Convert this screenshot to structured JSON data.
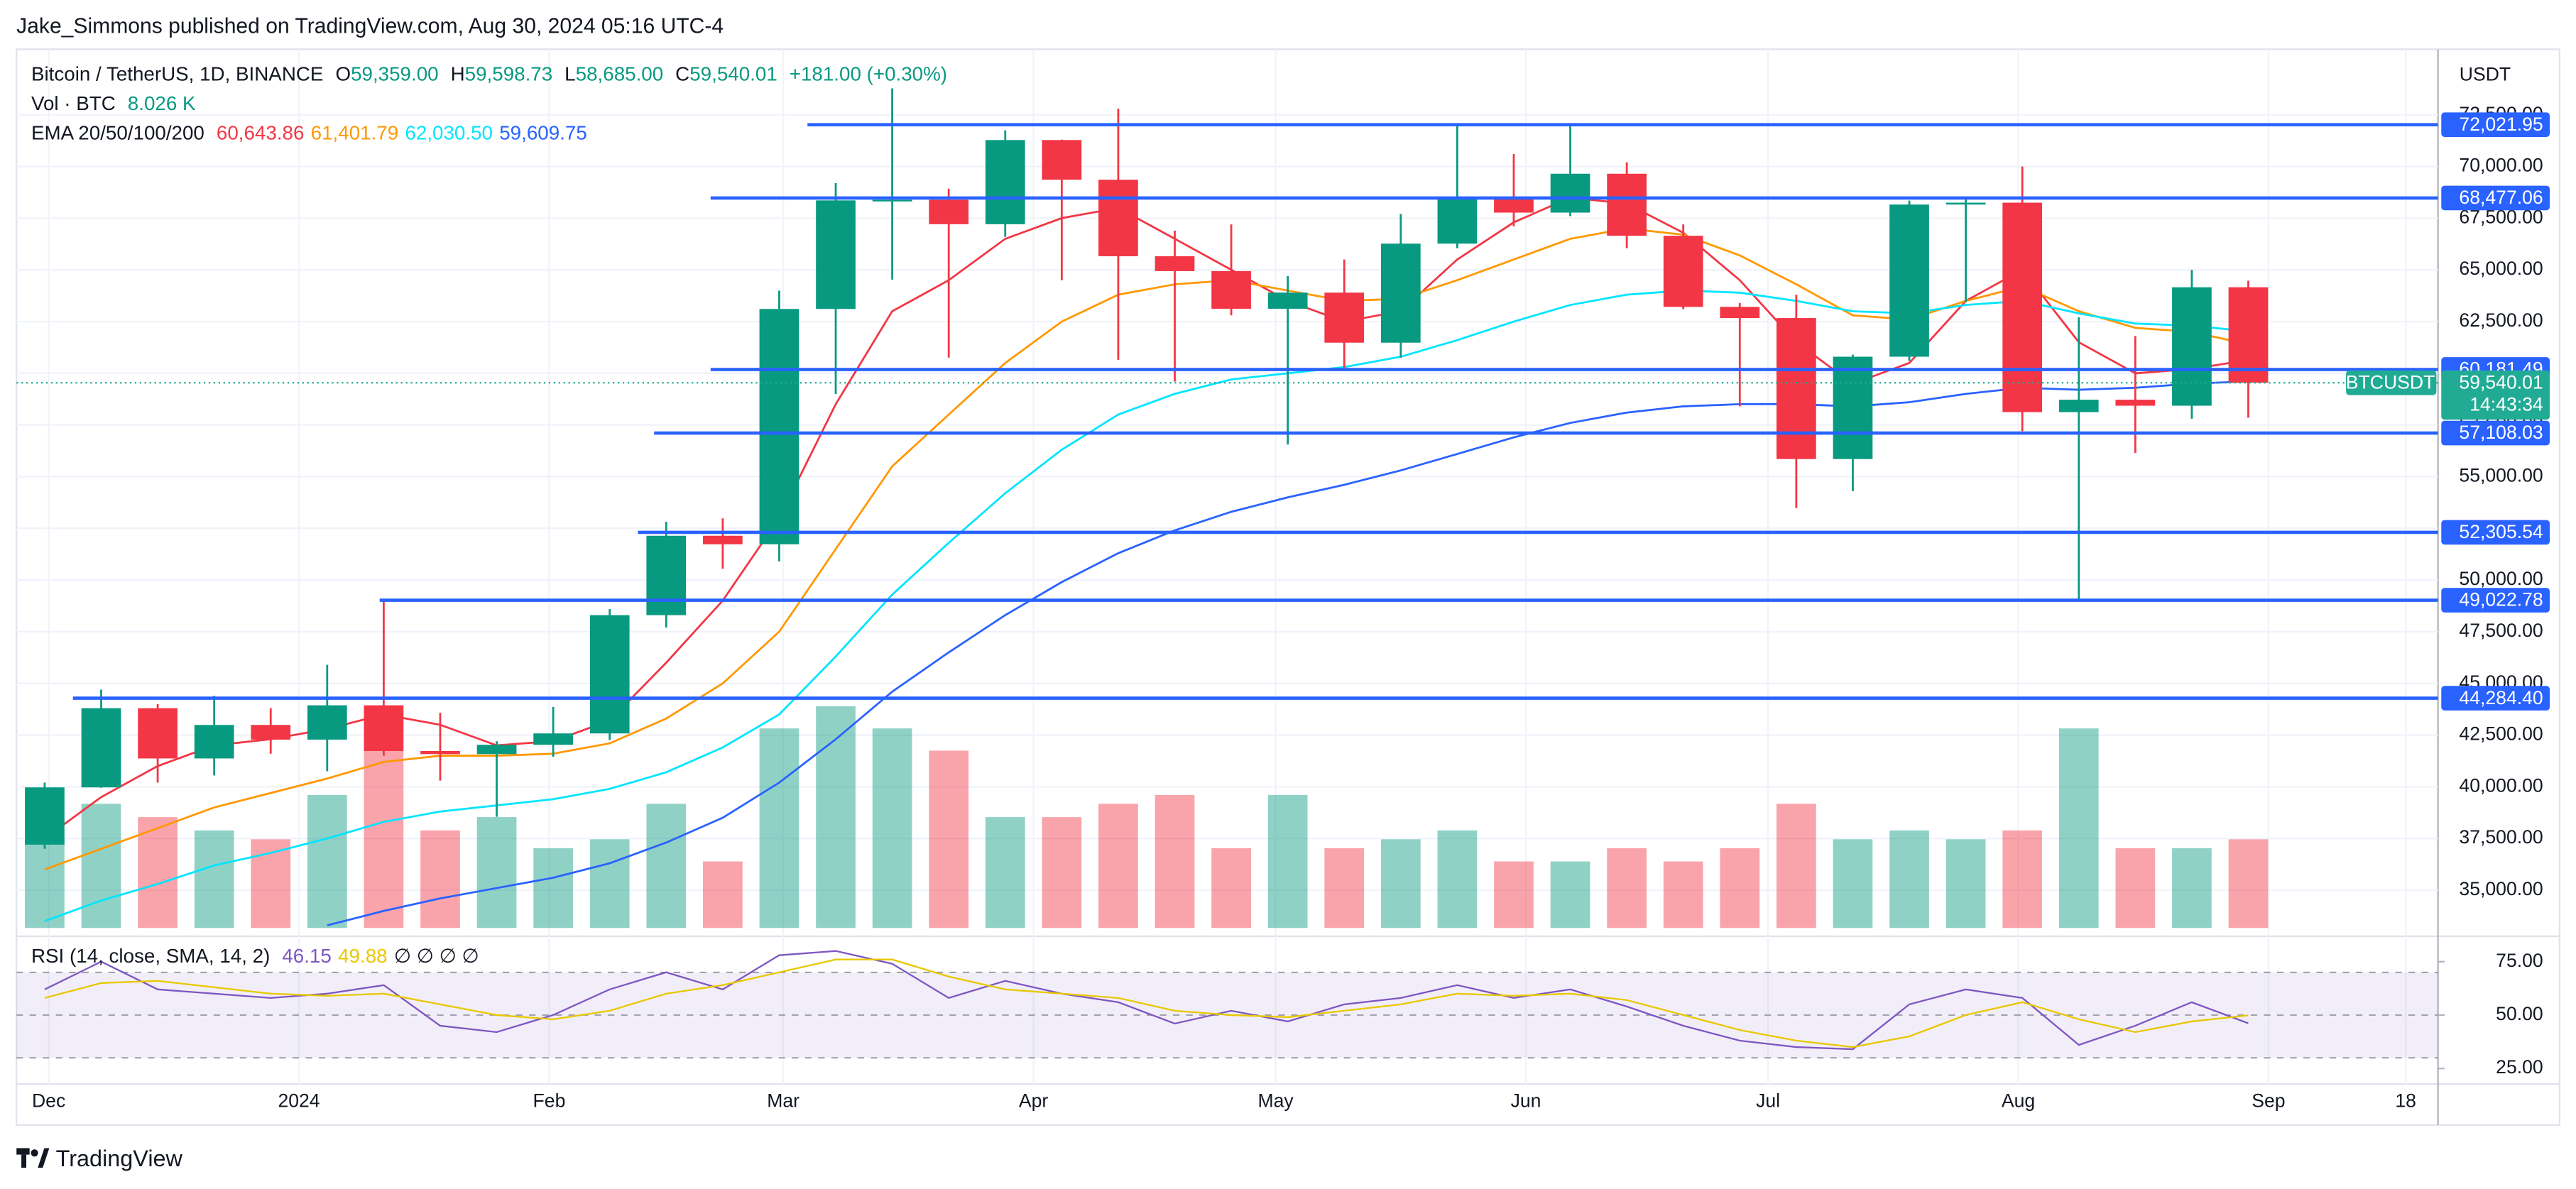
{
  "header": {
    "publisher": "Jake_Simmons published on TradingView.com, Aug 30, 2024 05:16 UTC-4",
    "symbol": "Bitcoin / TetherUS, 1D, BINANCE",
    "ohlc": [
      {
        "label": "O",
        "value": "59,359.00"
      },
      {
        "label": "H",
        "value": "59,598.73"
      },
      {
        "label": "L",
        "value": "58,685.00"
      },
      {
        "label": "C",
        "value": "59,540.01"
      }
    ],
    "change": "+181.00 (+0.30%)",
    "volume_label": "Vol · BTC",
    "volume_value": "8.026 K",
    "ema_label": "EMA 20/50/100/200",
    "currency": "USDT",
    "logo": "TradingView"
  },
  "chart_data": {
    "type": "candlestick",
    "x": [
      "2023-11-27",
      "2023-12-04",
      "2023-12-11",
      "2023-12-18",
      "2023-12-25",
      "2024-01-01",
      "2024-01-08",
      "2024-01-15",
      "2024-01-22",
      "2024-01-29",
      "2024-02-05",
      "2024-02-12",
      "2024-02-19",
      "2024-02-26",
      "2024-03-04",
      "2024-03-11",
      "2024-03-18",
      "2024-03-25",
      "2024-04-01",
      "2024-04-08",
      "2024-04-15",
      "2024-04-22",
      "2024-04-29",
      "2024-05-06",
      "2024-05-13",
      "2024-05-20",
      "2024-05-27",
      "2024-06-03",
      "2024-06-10",
      "2024-06-17",
      "2024-06-24",
      "2024-07-01",
      "2024-07-08",
      "2024-07-15",
      "2024-07-22",
      "2024-07-29",
      "2024-08-05",
      "2024-08-12",
      "2024-08-19",
      "2024-08-26"
    ],
    "open": [
      37200,
      39970,
      43800,
      41370,
      42990,
      42280,
      43940,
      41730,
      41580,
      42030,
      42580,
      48300,
      52140,
      51730,
      63110,
      68360,
      68390,
      67210,
      71280,
      69360,
      65660,
      64940,
      63120,
      63900,
      61480,
      66270,
      68500,
      67770,
      69650,
      66650,
      63210,
      62670,
      55850,
      60800,
      68160,
      68250,
      58120,
      58720,
      58430,
      64160
    ],
    "high": [
      40200,
      44700,
      44000,
      44400,
      43800,
      45900,
      48970,
      43580,
      42200,
      43860,
      48590,
      52820,
      52980,
      64000,
      69200,
      73780,
      68930,
      71750,
      71300,
      72800,
      66900,
      67200,
      64700,
      65500,
      67700,
      71950,
      70600,
      71950,
      70200,
      67200,
      63400,
      63800,
      60900,
      68350,
      68500,
      70000,
      62700,
      61800,
      65000,
      64480
    ],
    "low": [
      37000,
      39950,
      40200,
      40550,
      41600,
      40750,
      41500,
      40300,
      38550,
      41450,
      42260,
      47700,
      50550,
      50900,
      59000,
      64530,
      60760,
      66600,
      64500,
      60650,
      59600,
      62800,
      56550,
      60200,
      60750,
      66050,
      67100,
      67600,
      66050,
      63100,
      58400,
      53480,
      54300,
      60600,
      63450,
      57200,
      49000,
      56150,
      57800,
      57850
    ],
    "close": [
      39970,
      43800,
      41370,
      42990,
      42280,
      43940,
      41730,
      41580,
      42030,
      42580,
      48300,
      52140,
      51730,
      63110,
      68360,
      68390,
      67210,
      71280,
      69360,
      65660,
      64940,
      63120,
      63900,
      61480,
      66270,
      68500,
      67770,
      69650,
      66650,
      63210,
      62670,
      55850,
      60800,
      68160,
      68250,
      58120,
      58720,
      58430,
      64160,
      59540.01
    ],
    "volume": [
      20,
      28,
      25,
      22,
      20,
      30,
      40,
      22,
      25,
      18,
      20,
      28,
      15,
      45,
      50,
      45,
      40,
      25,
      25,
      28,
      30,
      18,
      30,
      18,
      20,
      22,
      15,
      15,
      18,
      15,
      18,
      28,
      20,
      22,
      20,
      22,
      45,
      18,
      18,
      20
    ],
    "up_color": "#089981",
    "down_color": "#f23645",
    "ema": [
      {
        "color": "#f23645",
        "last_label": "60,643.86",
        "values": [
          37500,
          39500,
          41000,
          42000,
          42300,
          42800,
          43500,
          43000,
          42000,
          42200,
          43200,
          46000,
          49000,
          53000,
          58500,
          63000,
          64500,
          66500,
          67500,
          68000,
          66500,
          65000,
          63500,
          62500,
          63000,
          65500,
          67300,
          68500,
          68200,
          66800,
          64500,
          61500,
          59500,
          60500,
          63500,
          65000,
          61500,
          60000,
          60200,
          60643.86
        ]
      },
      {
        "color": "#ff9800",
        "last_label": "61,401.79",
        "values": [
          36000,
          37000,
          38000,
          39000,
          39700,
          40400,
          41200,
          41500,
          41500,
          41600,
          42100,
          43300,
          45000,
          47500,
          51500,
          55500,
          58000,
          60500,
          62500,
          63800,
          64300,
          64500,
          64000,
          63500,
          63600,
          64500,
          65500,
          66500,
          67000,
          66700,
          65700,
          64300,
          62800,
          62600,
          63500,
          64200,
          63000,
          62200,
          62000,
          61401.79
        ]
      },
      {
        "color": "#00e5ff",
        "last_label": "62,030.50",
        "values": [
          33500,
          34500,
          35300,
          36200,
          36800,
          37500,
          38300,
          38800,
          39100,
          39400,
          39900,
          40700,
          41900,
          43500,
          46300,
          49300,
          51800,
          54200,
          56300,
          58000,
          59000,
          59700,
          60000,
          60300,
          60800,
          61600,
          62500,
          63300,
          63800,
          64000,
          63900,
          63500,
          63000,
          62900,
          63300,
          63500,
          62900,
          62400,
          62300,
          62030.5
        ]
      },
      {
        "color": "#2962ff",
        "last_label": "59,609.75",
        "values": [
          null,
          null,
          null,
          null,
          null,
          33300,
          34000,
          34600,
          35100,
          35600,
          36300,
          37300,
          38500,
          40200,
          42300,
          44600,
          46500,
          48300,
          49900,
          51300,
          52400,
          53300,
          54000,
          54600,
          55300,
          56100,
          56900,
          57600,
          58100,
          58400,
          58500,
          58500,
          58400,
          58600,
          59000,
          59300,
          59200,
          59300,
          59500,
          59609.75
        ]
      }
    ],
    "levels": [
      {
        "value": 72021.95,
        "label": "72,021.95",
        "start": "2024-03-04"
      },
      {
        "value": 68477.06,
        "label": "68,477.06",
        "start": "2024-02-21"
      },
      {
        "value": 60181.49,
        "label": "60,181.49",
        "start": "2024-02-21"
      },
      {
        "value": 57108.03,
        "label": "57,108.03",
        "start": "2024-02-14"
      },
      {
        "value": 52305.54,
        "label": "52,305.54",
        "start": "2024-02-12"
      },
      {
        "value": 49022.78,
        "label": "49,022.78",
        "start": "2024-01-11"
      },
      {
        "value": 44284.4,
        "label": "44,284.40",
        "start": "2023-12-04"
      }
    ],
    "level_color": "#2962ff",
    "last_price": {
      "symbol": "BTCUSDT",
      "value": 59540.01,
      "label": "59,540.01",
      "countdown": "14:43:34",
      "color": "#22ab94"
    },
    "xlim": [
      "2023-11-27",
      "2024-09-22"
    ],
    "xticks": [
      {
        "value": "2023-12-01",
        "label": "Dec"
      },
      {
        "value": "2024-01-01",
        "label": "2024"
      },
      {
        "value": "2024-02-01",
        "label": "Feb"
      },
      {
        "value": "2024-03-01",
        "label": "Mar"
      },
      {
        "value": "2024-04-01",
        "label": "Apr"
      },
      {
        "value": "2024-05-01",
        "label": "May"
      },
      {
        "value": "2024-06-01",
        "label": "Jun"
      },
      {
        "value": "2024-07-01",
        "label": "Jul"
      },
      {
        "value": "2024-08-01",
        "label": "Aug"
      },
      {
        "value": "2024-09-01",
        "label": "Sep"
      },
      {
        "value": "2024-09-18",
        "label": "18"
      }
    ],
    "ylim": [
      33170,
      75670
    ],
    "yticks": [
      {
        "value": 35000,
        "label": "35,000.00"
      },
      {
        "value": 37500,
        "label": "37,500.00"
      },
      {
        "value": 40000,
        "label": "40,000.00"
      },
      {
        "value": 42500,
        "label": "42,500.00"
      },
      {
        "value": 45000,
        "label": "45,000.00"
      },
      {
        "value": 47500,
        "label": "47,500.00"
      },
      {
        "value": 50000,
        "label": "50,000.00"
      },
      {
        "value": 52500,
        "label": "52,500.00"
      },
      {
        "value": 55000,
        "label": "55,000.00"
      },
      {
        "value": 57500,
        "label": "57,500.00"
      },
      {
        "value": 60000,
        "label": "60,000.00"
      },
      {
        "value": 62500,
        "label": "62,500.00"
      },
      {
        "value": 65000,
        "label": "65,000.00"
      },
      {
        "value": 67500,
        "label": "67,500.00"
      },
      {
        "value": 70000,
        "label": "70,000.00"
      },
      {
        "value": 72500,
        "label": "72,500.00"
      }
    ],
    "grid": true,
    "rsi": {
      "label": "RSI (14, close, SMA, 14, 2)",
      "extra": "∅ ∅ ∅ ∅",
      "series": [
        {
          "color": "#7e57c2",
          "last_label": "46.15",
          "values": [
            62,
            75,
            62,
            60,
            58,
            60,
            64,
            45,
            42,
            50,
            62,
            70,
            62,
            78,
            80,
            74,
            58,
            66,
            60,
            56,
            46,
            52,
            47,
            55,
            58,
            64,
            58,
            62,
            54,
            45,
            38,
            35,
            34,
            55,
            62,
            58,
            36,
            45,
            56,
            46.15
          ]
        },
        {
          "color": "#e8c800",
          "last_label": "49.88",
          "values": [
            58,
            65,
            66,
            63,
            60,
            59,
            60,
            55,
            50,
            48,
            52,
            60,
            64,
            70,
            76,
            76,
            68,
            62,
            60,
            58,
            52,
            50,
            49,
            52,
            55,
            60,
            59,
            60,
            57,
            50,
            43,
            38,
            35,
            40,
            50,
            56,
            48,
            42,
            47,
            49.88
          ]
        }
      ],
      "levels": [
        30,
        50,
        70
      ],
      "ylim": [
        20.8,
        83.1
      ],
      "yticks": [
        {
          "value": 25,
          "label": "25.00"
        },
        {
          "value": 50,
          "label": "50.00"
        },
        {
          "value": 75,
          "label": "75.00"
        }
      ]
    }
  }
}
